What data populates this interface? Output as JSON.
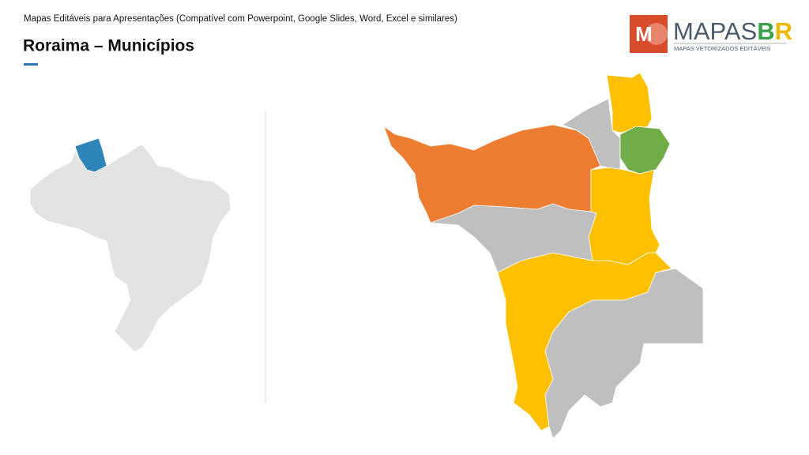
{
  "header": {
    "subtitle": "Mapas Editáveis para Apresentações (Compatível com Powerpoint, Google Slides, Word, Excel e similares)",
    "title": "Roraima – Municípios"
  },
  "logo": {
    "icon_letter": "M",
    "name_main": "MAPAS",
    "name_b": "B",
    "name_r": "R",
    "tagline": "MAPAS VETORIZADOS EDITÁVEIS"
  }
}
